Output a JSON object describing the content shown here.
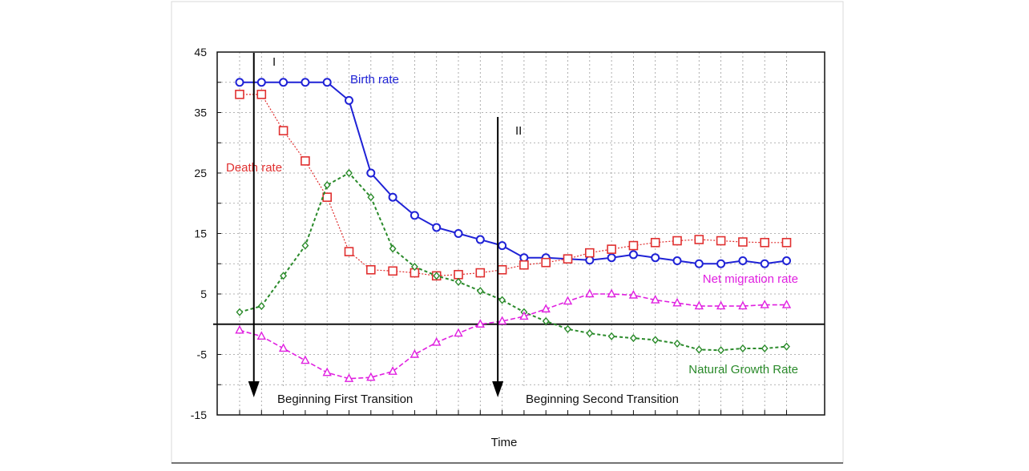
{
  "chart_data": {
    "type": "line",
    "title": "",
    "xlabel": "Time",
    "ylabel": "",
    "xlim": [
      -1,
      26
    ],
    "ylim": [
      -15,
      45
    ],
    "yticks": [
      "45",
      "35",
      "25",
      "15",
      "5",
      "-5",
      "-15"
    ],
    "grid": true,
    "series": [
      {
        "name": "Birth rate",
        "color": "#1f22d6",
        "marker": "circle",
        "values": [
          40,
          40,
          40,
          40,
          40,
          37,
          25,
          21,
          18,
          16,
          15,
          14,
          13,
          11,
          11,
          10.8,
          10.6,
          11,
          11.5,
          11,
          10.5,
          10,
          10,
          10.5,
          10,
          10.5
        ]
      },
      {
        "name": "Death rate",
        "color": "#e03030",
        "marker": "square",
        "values": [
          38,
          38,
          32,
          27,
          21,
          12,
          9,
          8.8,
          8.5,
          8,
          8.2,
          8.5,
          9,
          9.8,
          10.2,
          10.8,
          11.8,
          12.4,
          13,
          13.5,
          13.8,
          14,
          13.8,
          13.6,
          13.5,
          13.5
        ]
      },
      {
        "name": "Natural Growth Rate",
        "color": "#2a8a2a",
        "marker": "diamond",
        "values": [
          2,
          3,
          8,
          13,
          23,
          25,
          21,
          12.5,
          9.5,
          8,
          7,
          5.5,
          4,
          2,
          0.5,
          -0.8,
          -1.5,
          -2,
          -2.3,
          -2.6,
          -3.2,
          -4.2,
          -4.3,
          -4,
          -4,
          -3.7
        ]
      },
      {
        "name": "Net migration rate",
        "color": "#e020e0",
        "marker": "triangle",
        "values": [
          -1,
          -2,
          -4,
          -6,
          -8,
          -9,
          -8.8,
          -7.8,
          -5,
          -3,
          -1.5,
          0,
          0.5,
          1.3,
          2.5,
          3.8,
          5,
          5,
          4.8,
          4,
          3.5,
          3,
          3,
          3,
          3.2,
          3.2
        ]
      }
    ],
    "vlines": [
      {
        "x": 0.65,
        "label": "I",
        "annotation": "Beginning First Transition"
      },
      {
        "x": 11.8,
        "label": "II",
        "annotation": "Beginning Second Transition"
      }
    ]
  }
}
